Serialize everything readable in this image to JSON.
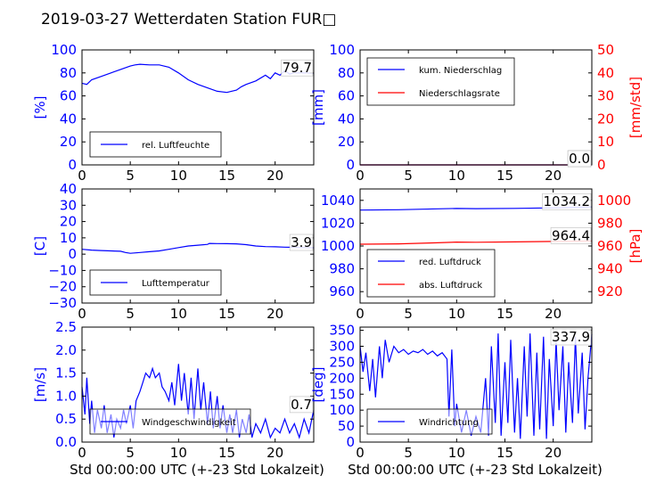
{
  "title": "2019-03-27 Wetterdaten Station FUR□",
  "xlabel": "Std 00:00:00 UTC (+-23 Std Lokalzeit)",
  "colors": {
    "blue": "#0000ff",
    "red": "#ff0000",
    "light_blue": "#8080ff",
    "axis": "#000000"
  },
  "chart_data": [
    {
      "type": "line",
      "ylabel": "[%]",
      "xlim": [
        0,
        24
      ],
      "ylim": [
        0,
        100
      ],
      "xticks": [
        "0",
        "5",
        "10",
        "15",
        "20"
      ],
      "yticks": [
        "0",
        "20",
        "40",
        "60",
        "80",
        "100"
      ],
      "current": "79.7",
      "legend_position": "lower-left",
      "series": [
        {
          "name": "rel. Luftfeuchte",
          "color": "#0000ff",
          "axis": "left",
          "points": [
            [
              0,
              71
            ],
            [
              0.5,
              70
            ],
            [
              1,
              74
            ],
            [
              2,
              77
            ],
            [
              3,
              80
            ],
            [
              4,
              83
            ],
            [
              5,
              86
            ],
            [
              5.5,
              87
            ],
            [
              6,
              87.5
            ],
            [
              7,
              87
            ],
            [
              8,
              87
            ],
            [
              9,
              85
            ],
            [
              10,
              80
            ],
            [
              11,
              74
            ],
            [
              12,
              70
            ],
            [
              13,
              67
            ],
            [
              14,
              64
            ],
            [
              15,
              63
            ],
            [
              16,
              65
            ],
            [
              16.5,
              68
            ],
            [
              17,
              70
            ],
            [
              18,
              73
            ],
            [
              19,
              78
            ],
            [
              19.5,
              75
            ],
            [
              20,
              80
            ],
            [
              20.5,
              78
            ],
            [
              21,
              82
            ],
            [
              21.5,
              79
            ],
            [
              22,
              80
            ],
            [
              23,
              80
            ],
            [
              24,
              79.7
            ]
          ]
        }
      ]
    },
    {
      "type": "line",
      "ylabel": "[mm]",
      "ylabel_right": "[mm/std]",
      "xlim": [
        0,
        24
      ],
      "ylim": [
        0,
        100
      ],
      "ylim_right": [
        0,
        50
      ],
      "xticks": [
        "0",
        "5",
        "10",
        "15",
        "20"
      ],
      "yticks": [
        "0",
        "20",
        "40",
        "60",
        "80",
        "100"
      ],
      "yticks_right": [
        "0",
        "10",
        "20",
        "30",
        "40",
        "50"
      ],
      "current": "0.0",
      "current2": "0.0",
      "legend_position": "upper-left",
      "series": [
        {
          "name": "kum. Niederschlag",
          "color": "#0000ff",
          "axis": "left",
          "points": [
            [
              0,
              0
            ],
            [
              24,
              0
            ]
          ]
        },
        {
          "name": "Niederschlagsrate",
          "color": "#ff0000",
          "axis": "right",
          "points": [
            [
              0,
              0
            ],
            [
              24,
              0
            ]
          ]
        }
      ]
    },
    {
      "type": "line",
      "ylabel": "[C]",
      "xlim": [
        0,
        24
      ],
      "ylim": [
        -30,
        40
      ],
      "xticks": [
        "0",
        "5",
        "10",
        "15",
        "20"
      ],
      "yticks": [
        "−30",
        "−20",
        "−10",
        "0",
        "10",
        "20",
        "30",
        "40"
      ],
      "current": "3.9",
      "legend_position": "lower-left",
      "series": [
        {
          "name": "Lufttemperatur",
          "color": "#0000ff",
          "axis": "left",
          "points": [
            [
              0,
              3
            ],
            [
              1,
              2.5
            ],
            [
              2,
              2.2
            ],
            [
              3,
              2
            ],
            [
              4,
              1.8
            ],
            [
              4.5,
              1
            ],
            [
              5,
              0.5
            ],
            [
              6,
              1
            ],
            [
              7,
              1.5
            ],
            [
              8,
              2
            ],
            [
              9,
              3
            ],
            [
              10,
              4
            ],
            [
              11,
              5
            ],
            [
              12,
              5.5
            ],
            [
              13,
              6
            ],
            [
              13.2,
              6.6
            ],
            [
              14,
              6.5
            ],
            [
              15,
              6.4
            ],
            [
              16,
              6.3
            ],
            [
              17,
              5.8
            ],
            [
              18,
              5
            ],
            [
              19,
              4.6
            ],
            [
              20,
              4.5
            ],
            [
              21,
              4.3
            ],
            [
              22,
              4.2
            ],
            [
              23,
              4
            ],
            [
              24,
              3.9
            ]
          ]
        }
      ]
    },
    {
      "type": "line",
      "ylabel_right": "[hPa]",
      "xlim": [
        0,
        24
      ],
      "ylim": [
        950,
        1050
      ],
      "ylim_right": [
        910,
        1010
      ],
      "xticks": [
        "0",
        "5",
        "10",
        "15",
        "20"
      ],
      "yticks": [
        "960",
        "980",
        "1000",
        "1020",
        "1040"
      ],
      "yticks_right": [
        "920",
        "940",
        "960",
        "980",
        "1000"
      ],
      "current": "1034.2",
      "current2": "964.4",
      "legend_position": "lower-left",
      "series": [
        {
          "name": "red. Luftdruck",
          "color": "#0000ff",
          "axis": "left",
          "points": [
            [
              0,
              1031.5
            ],
            [
              4,
              1031.8
            ],
            [
              8,
              1032.6
            ],
            [
              10,
              1032.9
            ],
            [
              12,
              1032.7
            ],
            [
              16,
              1033
            ],
            [
              20,
              1033.4
            ],
            [
              24,
              1034.2
            ]
          ]
        },
        {
          "name": "abs. Luftdruck",
          "color": "#ff0000",
          "axis": "right",
          "points": [
            [
              0,
              961.6
            ],
            [
              4,
              961.9
            ],
            [
              8,
              962.8
            ],
            [
              10,
              963.4
            ],
            [
              12,
              963.3
            ],
            [
              16,
              963.6
            ],
            [
              20,
              964
            ],
            [
              24,
              964.4
            ]
          ]
        }
      ]
    },
    {
      "type": "line",
      "ylabel": "[m/s]",
      "xlim": [
        0,
        24
      ],
      "ylim": [
        0,
        2.5
      ],
      "xticks": [
        "0",
        "5",
        "10",
        "15",
        "20"
      ],
      "yticks": [
        "0.0",
        "0.5",
        "1.0",
        "1.5",
        "2.0",
        "2.5"
      ],
      "current": "0.7",
      "legend_position": "lower-left",
      "series": [
        {
          "name": "Windgeschwindigkeit",
          "color": "#0000ff",
          "axis": "left",
          "points": [
            [
              0,
              1.2
            ],
            [
              0.3,
              0.6
            ],
            [
              0.5,
              1.4
            ],
            [
              0.8,
              0.4
            ],
            [
              1,
              0.9
            ],
            [
              1.3,
              0.2
            ],
            [
              1.6,
              0.7
            ],
            [
              2,
              0.3
            ],
            [
              2.3,
              0.8
            ],
            [
              2.6,
              0.2
            ],
            [
              3,
              0.6
            ],
            [
              3.3,
              0.1
            ],
            [
              3.6,
              0.5
            ],
            [
              4,
              0.3
            ],
            [
              4.3,
              0.7
            ],
            [
              4.6,
              0.4
            ],
            [
              5,
              0.8
            ],
            [
              5.3,
              0.3
            ],
            [
              5.6,
              0.9
            ],
            [
              6,
              1.1
            ],
            [
              6.3,
              1.3
            ],
            [
              6.6,
              1.5
            ],
            [
              7,
              1.4
            ],
            [
              7.3,
              1.6
            ],
            [
              7.6,
              1.4
            ],
            [
              8,
              1.5
            ],
            [
              8.3,
              1.2
            ],
            [
              8.6,
              1.1
            ],
            [
              9,
              0.9
            ],
            [
              9.3,
              1.3
            ],
            [
              9.6,
              0.8
            ],
            [
              10,
              1.7
            ],
            [
              10.3,
              0.9
            ],
            [
              10.6,
              1.5
            ],
            [
              11,
              0.6
            ],
            [
              11.3,
              1.4
            ],
            [
              11.6,
              0.5
            ],
            [
              12,
              1.6
            ],
            [
              12.3,
              0.7
            ],
            [
              12.6,
              1.3
            ],
            [
              13,
              0.4
            ],
            [
              13.3,
              1.1
            ],
            [
              13.6,
              0.3
            ],
            [
              14,
              1
            ],
            [
              14.3,
              0.3
            ],
            [
              14.6,
              0.8
            ],
            [
              15,
              0.2
            ],
            [
              15.3,
              0.6
            ],
            [
              15.6,
              0.2
            ],
            [
              16,
              0.7
            ],
            [
              16.3,
              0.1
            ],
            [
              16.6,
              0.5
            ],
            [
              17,
              0.2
            ],
            [
              17.3,
              0.6
            ],
            [
              17.6,
              0.1
            ],
            [
              18,
              0.4
            ],
            [
              18.5,
              0.2
            ],
            [
              19,
              0.5
            ],
            [
              19.5,
              0.1
            ],
            [
              20,
              0.3
            ],
            [
              20.5,
              0.2
            ],
            [
              21,
              0.5
            ],
            [
              21.5,
              0.2
            ],
            [
              22,
              0.4
            ],
            [
              22.5,
              0.1
            ],
            [
              23,
              0.5
            ],
            [
              23.5,
              0.2
            ],
            [
              24,
              0.7
            ]
          ]
        }
      ]
    },
    {
      "type": "line",
      "ylabel": "[deg]",
      "xlim": [
        0,
        24
      ],
      "ylim": [
        0,
        360
      ],
      "xticks": [
        "0",
        "5",
        "10",
        "15",
        "20"
      ],
      "yticks": [
        "0",
        "50",
        "100",
        "150",
        "200",
        "250",
        "300",
        "350"
      ],
      "current": "337.9",
      "legend_position": "lower-left",
      "series": [
        {
          "name": "Windrichtung",
          "color": "#0000ff",
          "axis": "left",
          "points": [
            [
              0,
              300
            ],
            [
              0.3,
              220
            ],
            [
              0.6,
              280
            ],
            [
              1,
              160
            ],
            [
              1.3,
              260
            ],
            [
              1.6,
              140
            ],
            [
              2,
              300
            ],
            [
              2.3,
              200
            ],
            [
              2.6,
              320
            ],
            [
              3,
              250
            ],
            [
              3.5,
              300
            ],
            [
              4,
              280
            ],
            [
              4.5,
              290
            ],
            [
              5,
              275
            ],
            [
              5.5,
              285
            ],
            [
              6,
              280
            ],
            [
              6.5,
              290
            ],
            [
              7,
              275
            ],
            [
              7.5,
              285
            ],
            [
              8,
              270
            ],
            [
              8.5,
              280
            ],
            [
              9,
              260
            ],
            [
              9.2,
              80
            ],
            [
              9.5,
              290
            ],
            [
              9.8,
              50
            ],
            [
              10,
              120
            ],
            [
              10.5,
              30
            ],
            [
              11,
              100
            ],
            [
              11.5,
              20
            ],
            [
              12,
              80
            ],
            [
              12.5,
              30
            ],
            [
              13,
              200
            ],
            [
              13.3,
              20
            ],
            [
              13.6,
              300
            ],
            [
              14,
              60
            ],
            [
              14.3,
              340
            ],
            [
              14.6,
              20
            ],
            [
              15,
              250
            ],
            [
              15.3,
              60
            ],
            [
              15.6,
              320
            ],
            [
              16,
              30
            ],
            [
              16.3,
              200
            ],
            [
              16.6,
              10
            ],
            [
              17,
              300
            ],
            [
              17.3,
              80
            ],
            [
              17.6,
              340
            ],
            [
              18,
              20
            ],
            [
              18.3,
              280
            ],
            [
              18.6,
              40
            ],
            [
              19,
              330
            ],
            [
              19.3,
              10
            ],
            [
              19.6,
              260
            ],
            [
              20,
              50
            ],
            [
              20.3,
              320
            ],
            [
              20.6,
              100
            ],
            [
              21,
              300
            ],
            [
              21.3,
              30
            ],
            [
              21.6,
              250
            ],
            [
              22,
              60
            ],
            [
              22.3,
              330
            ],
            [
              22.6,
              90
            ],
            [
              23,
              280
            ],
            [
              23.3,
              40
            ],
            [
              23.6,
              200
            ],
            [
              24,
              337.9
            ]
          ]
        }
      ]
    }
  ]
}
